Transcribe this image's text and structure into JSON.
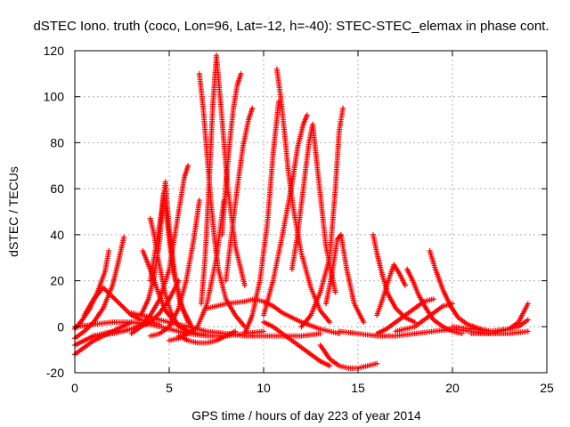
{
  "chart_data": {
    "type": "scatter",
    "title": "dSTEC Iono. truth (coco, Lon=96, Lat=-12, h=-40): STEC-STEC_elemax in phase cont.",
    "xlabel": "GPS time / hours of day 223 of year 2014",
    "ylabel": "dSTEC  / TECUs",
    "xlim": [
      0,
      25
    ],
    "ylim": [
      -20,
      120
    ],
    "xticks": [
      0,
      5,
      10,
      15,
      20,
      25
    ],
    "yticks": [
      -20,
      0,
      20,
      40,
      60,
      80,
      100,
      120
    ],
    "grid": true,
    "marker": "+",
    "color": "#ff0000",
    "series": [
      {
        "x": [
          0.0,
          0.4,
          0.8,
          1.2,
          1.6,
          1.8
        ],
        "y": [
          -1,
          3,
          8,
          15,
          24,
          33
        ]
      },
      {
        "x": [
          0.0,
          0.5,
          1.0,
          1.5,
          2.0,
          2.3,
          2.6
        ],
        "y": [
          -5,
          -2,
          2,
          8,
          18,
          28,
          39
        ]
      },
      {
        "x": [
          0.0,
          0.5,
          1.0,
          1.5,
          2.0,
          2.5,
          3.0
        ],
        "y": [
          -12,
          -9,
          -6,
          -4,
          -2,
          0,
          2
        ]
      },
      {
        "x": [
          0.0,
          0.5,
          1.0,
          1.5,
          2.0,
          2.5,
          3.0,
          3.5,
          4.0
        ],
        "y": [
          -8,
          -6,
          -4,
          -3,
          -2,
          -2,
          -1,
          0,
          2
        ]
      },
      {
        "x": [
          0.5,
          1.0,
          1.5,
          2.0,
          2.5,
          3.0,
          3.5,
          4.0,
          4.5
        ],
        "y": [
          5,
          12,
          17,
          13,
          9,
          5,
          3,
          2,
          1
        ]
      },
      {
        "x": [
          3.6,
          3.9,
          4.2,
          4.5,
          4.8,
          5.2,
          5.6,
          6.0,
          6.5,
          7.0
        ],
        "y": [
          33,
          27,
          20,
          13,
          7,
          3,
          0,
          -2,
          -3,
          -3
        ]
      },
      {
        "x": [
          3.5,
          3.9,
          4.2,
          4.5,
          4.7,
          4.9,
          5.2,
          5.6,
          6.0
        ],
        "y": [
          5,
          12,
          22,
          38,
          58,
          45,
          25,
          10,
          2
        ]
      },
      {
        "x": [
          4.0,
          4.3,
          4.6,
          4.8,
          5.0,
          5.3,
          5.7,
          6.2
        ],
        "y": [
          20,
          35,
          50,
          63,
          42,
          22,
          8,
          0
        ]
      },
      {
        "x": [
          4.0,
          4.2,
          4.4,
          4.6,
          4.8,
          5.1,
          5.5
        ],
        "y": [
          47,
          40,
          30,
          22,
          14,
          6,
          0
        ]
      },
      {
        "x": [
          3.0,
          3.5,
          4.0,
          4.5,
          5.0,
          5.4,
          5.8,
          6.0
        ],
        "y": [
          -3,
          0,
          5,
          12,
          25,
          45,
          65,
          70
        ]
      },
      {
        "x": [
          4.0,
          4.5,
          5.0,
          5.5,
          5.9,
          6.3,
          6.6
        ],
        "y": [
          -4,
          -3,
          0,
          8,
          20,
          38,
          55
        ]
      },
      {
        "x": [
          5.0,
          5.5,
          6.0,
          6.5,
          7.0,
          7.5,
          7.9
        ],
        "y": [
          -6,
          -5,
          -3,
          0,
          10,
          30,
          55
        ]
      },
      {
        "x": [
          6.6,
          6.8,
          7.0,
          7.2,
          7.4,
          7.6,
          8.0,
          8.5,
          9.0
        ],
        "y": [
          110,
          95,
          75,
          55,
          38,
          25,
          12,
          5,
          0
        ]
      },
      {
        "x": [
          6.7,
          6.9,
          7.1,
          7.3,
          7.5,
          7.8,
          8.1,
          8.5,
          9.0
        ],
        "y": [
          10,
          30,
          60,
          95,
          118,
          90,
          60,
          35,
          18
        ]
      },
      {
        "x": [
          7.8,
          8.0,
          8.2,
          8.4,
          8.6,
          8.8
        ],
        "y": [
          40,
          62,
          80,
          95,
          105,
          110
        ]
      },
      {
        "x": [
          8.0,
          8.3,
          8.6,
          8.9,
          9.2,
          9.4
        ],
        "y": [
          20,
          40,
          60,
          78,
          90,
          95
        ]
      },
      {
        "x": [
          9.0,
          9.4,
          9.8,
          10.2,
          10.5,
          10.8
        ],
        "y": [
          -3,
          5,
          20,
          45,
          75,
          98
        ]
      },
      {
        "x": [
          10.7,
          10.9,
          11.1,
          11.3,
          11.6,
          12.0,
          12.5,
          13.0,
          13.5
        ],
        "y": [
          112,
          100,
          85,
          68,
          50,
          32,
          17,
          7,
          2
        ]
      },
      {
        "x": [
          10.0,
          10.5,
          11.0,
          11.5,
          11.8,
          12.1,
          12.3
        ],
        "y": [
          5,
          20,
          40,
          62,
          78,
          88,
          92
        ]
      },
      {
        "x": [
          11.5,
          11.8,
          12.1,
          12.4,
          12.6,
          12.9,
          13.3,
          13.8
        ],
        "y": [
          25,
          40,
          60,
          80,
          88,
          65,
          35,
          15
        ]
      },
      {
        "x": [
          12.0,
          12.5,
          13.0,
          13.5,
          13.8,
          14.0,
          14.2
        ],
        "y": [
          0,
          5,
          15,
          30,
          60,
          85,
          95
        ]
      },
      {
        "x": [
          13.3,
          13.6,
          13.9,
          14.1,
          14.4,
          14.8,
          15.3
        ],
        "y": [
          10,
          22,
          38,
          40,
          25,
          10,
          2
        ]
      },
      {
        "x": [
          13.0,
          13.5,
          14.0,
          14.5,
          15.0,
          15.5,
          16.0
        ],
        "y": [
          -8,
          -14,
          -17,
          -18,
          -18,
          -17,
          -16
        ]
      },
      {
        "x": [
          10.0,
          10.5,
          11.0,
          11.5,
          12.0,
          12.5,
          13.0,
          13.5
        ],
        "y": [
          2,
          0,
          -3,
          -6,
          -9,
          -12,
          -15,
          -17
        ]
      },
      {
        "x": [
          15.8,
          16.0,
          16.3,
          16.6,
          17.0,
          17.5,
          18.0
        ],
        "y": [
          40,
          32,
          22,
          14,
          8,
          4,
          2
        ]
      },
      {
        "x": [
          16.0,
          16.3,
          16.6,
          16.9,
          17.2,
          17.5
        ],
        "y": [
          5,
          12,
          20,
          27,
          23,
          18
        ]
      },
      {
        "x": [
          17.6,
          17.9,
          18.2,
          18.6,
          19.0,
          19.5,
          20.0,
          20.5
        ],
        "y": [
          25,
          20,
          14,
          8,
          3,
          0,
          -2,
          -3
        ]
      },
      {
        "x": [
          18.8,
          19.1,
          19.5,
          19.9,
          20.3,
          20.8,
          21.5,
          22.0
        ],
        "y": [
          33,
          25,
          16,
          9,
          4,
          1,
          -1,
          -2
        ]
      },
      {
        "x": [
          16.0,
          16.5,
          17.0,
          17.5,
          18.0,
          18.5,
          19.0
        ],
        "y": [
          -3,
          -1,
          2,
          5,
          8,
          11,
          12
        ]
      },
      {
        "x": [
          17.0,
          17.5,
          18.0,
          18.5,
          19.0,
          19.5,
          20.0
        ],
        "y": [
          -2,
          -1,
          0,
          3,
          6,
          9,
          10
        ]
      },
      {
        "x": [
          14.0,
          15.0,
          16.0,
          17.0,
          18.0,
          19.0,
          20.0,
          21.0,
          22.0,
          23.0,
          24.0
        ],
        "y": [
          -2,
          -3,
          -4,
          -4,
          -3,
          -2,
          -1,
          -2,
          -3,
          -3,
          -2
        ]
      },
      {
        "x": [
          20.0,
          21.0,
          22.0,
          23.0,
          23.5,
          24.0
        ],
        "y": [
          0,
          -1,
          -2,
          -1,
          2,
          10
        ]
      },
      {
        "x": [
          21.0,
          22.0,
          22.5,
          23.0,
          23.5,
          24.0
        ],
        "y": [
          -3,
          -3,
          -2,
          -1,
          0,
          3
        ]
      },
      {
        "x": [
          0.0,
          1.0,
          2.0,
          3.0,
          4.0,
          5.0,
          6.0,
          7.0,
          8.0,
          9.0,
          10.0
        ],
        "y": [
          0,
          1,
          2,
          2,
          1,
          -1,
          -3,
          -4,
          -4,
          -3,
          -2
        ]
      },
      {
        "x": [
          3.0,
          4.0,
          5.0,
          6.0,
          7.0,
          8.0,
          9.0,
          10.0,
          11.0,
          12.0,
          13.0
        ],
        "y": [
          6,
          4,
          2,
          0,
          -2,
          -3,
          -4,
          -4,
          -4,
          -4,
          -3
        ]
      },
      {
        "x": [
          7.0,
          8.0,
          9.0,
          9.5,
          10.0,
          10.5,
          11.0,
          12.0,
          13.0,
          14.0
        ],
        "y": [
          8,
          10,
          11,
          12,
          11,
          9,
          6,
          2,
          -1,
          -3
        ]
      },
      {
        "x": [
          1.0,
          2.0,
          3.0,
          4.0,
          4.5,
          5.0,
          5.5
        ],
        "y": [
          -4,
          -3,
          -1,
          2,
          6,
          12,
          20
        ]
      },
      {
        "x": [
          5.5,
          6.0,
          6.5,
          7.0,
          7.5,
          8.0,
          8.5
        ],
        "y": [
          -4,
          -6,
          -7,
          -7,
          -6,
          -4,
          -2
        ]
      }
    ]
  }
}
